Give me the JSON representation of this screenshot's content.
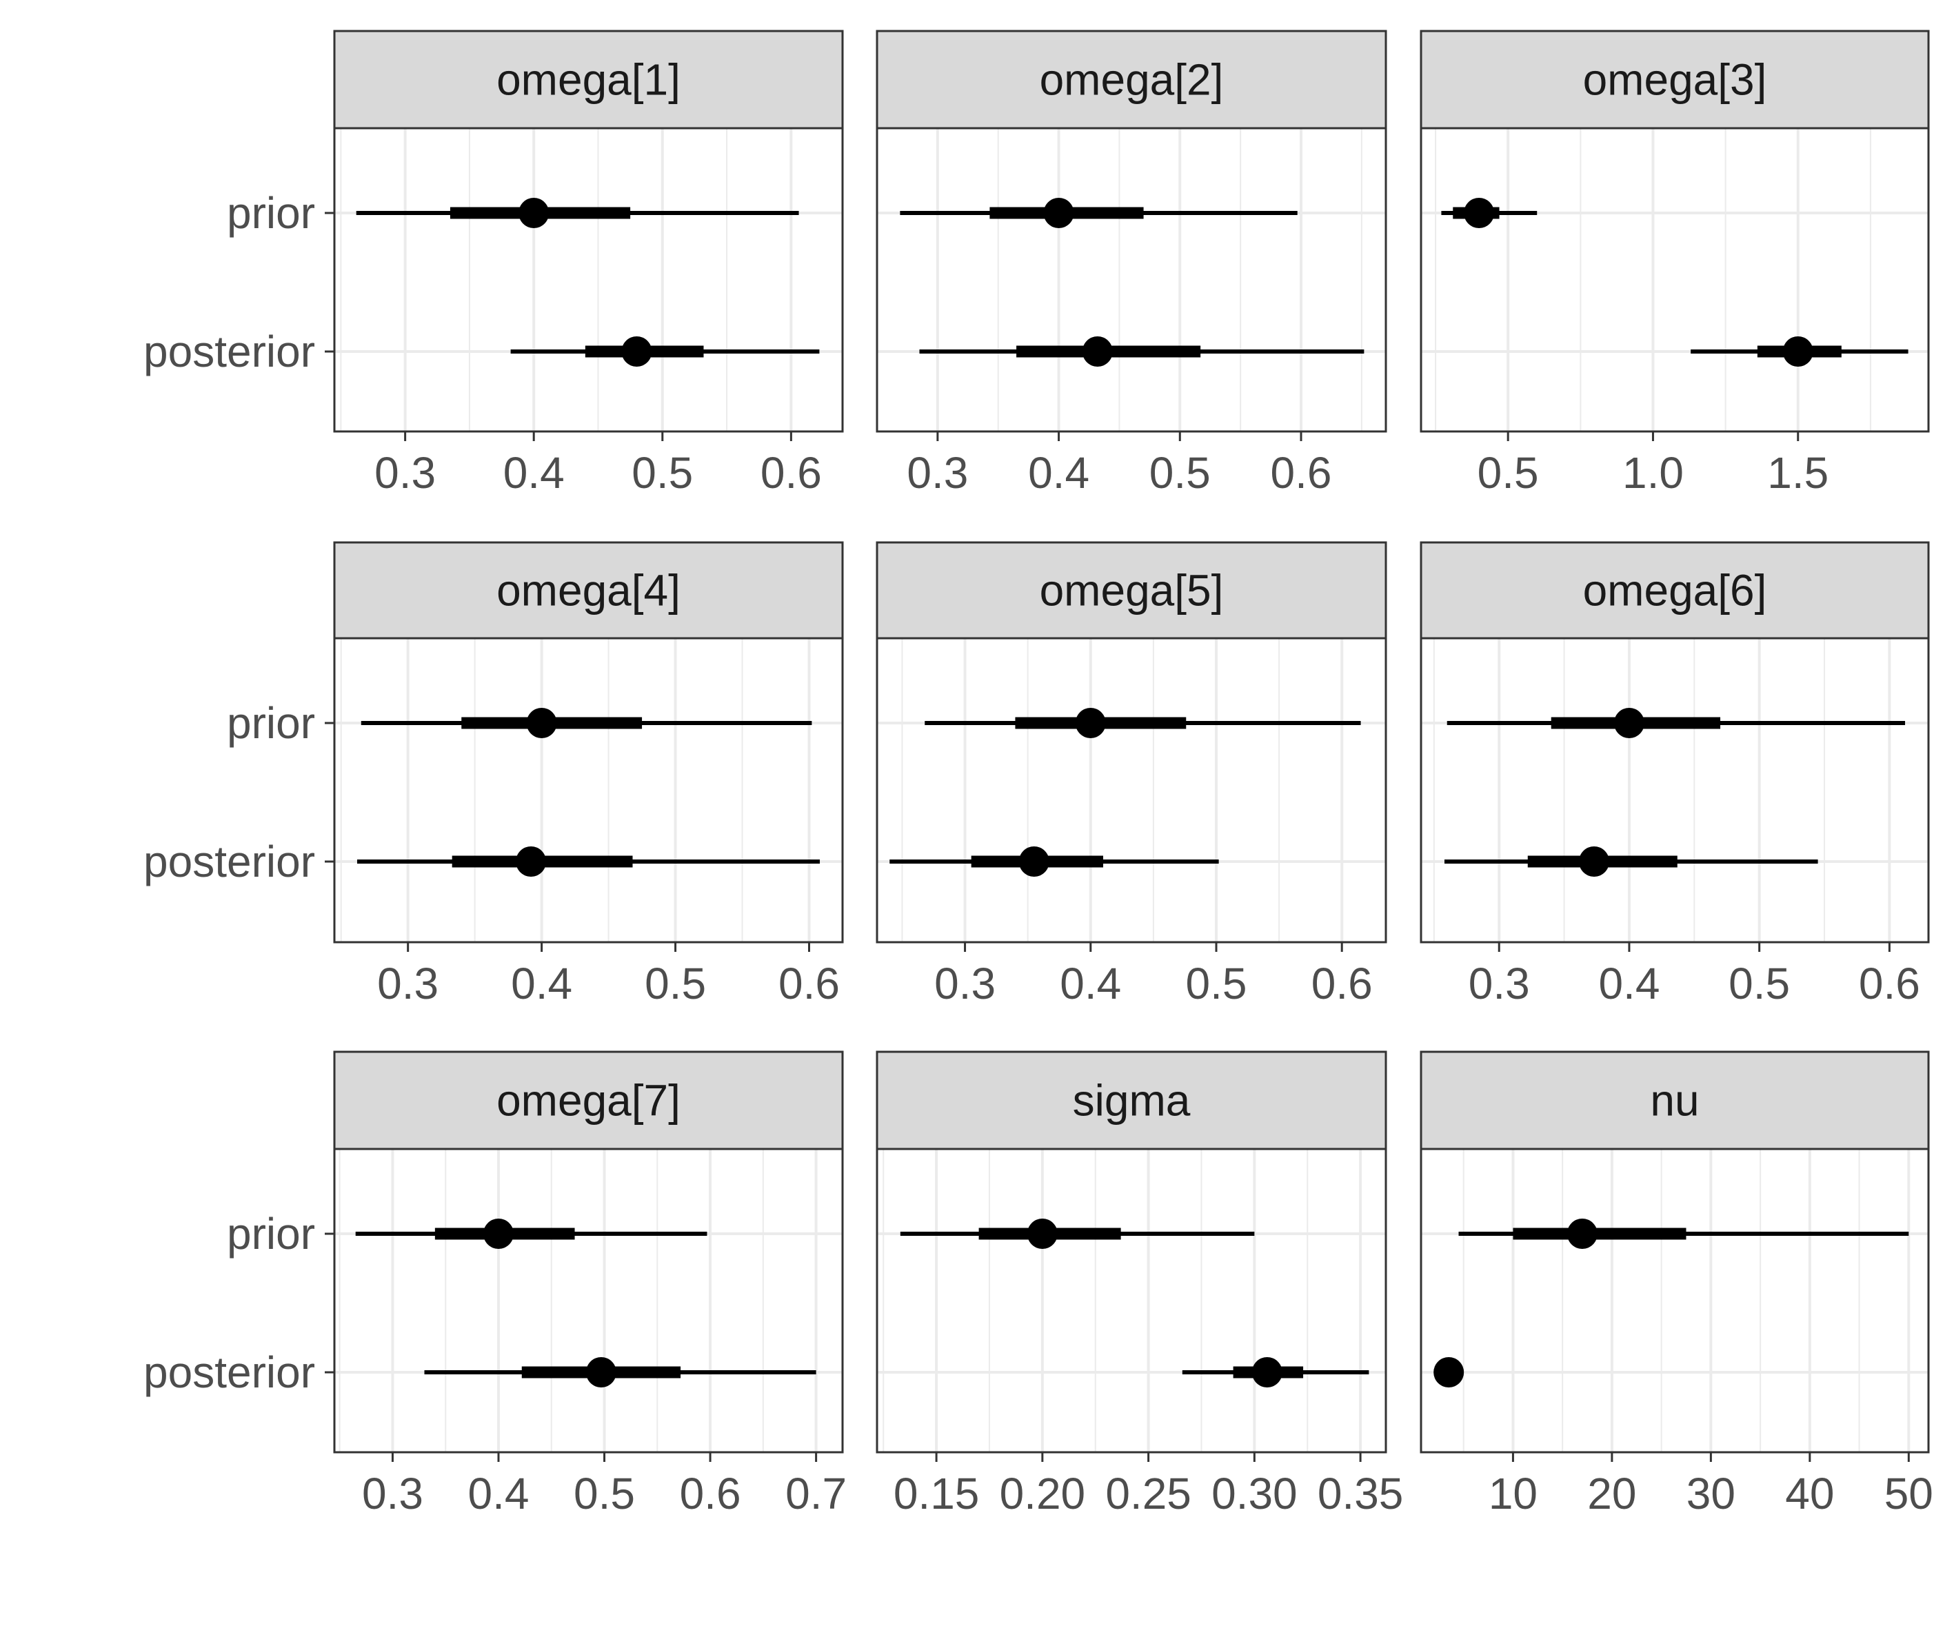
{
  "chart_data": {
    "type": "interval",
    "layout": "facet-grid 3x3",
    "categories": [
      "prior",
      "posterior"
    ],
    "grid": true,
    "panels": [
      {
        "title": "omega[1]",
        "xlim": [
          0.245,
          0.64
        ],
        "ticks": [
          0.3,
          0.4,
          0.5,
          0.6
        ],
        "tick_labels": [
          "0.3",
          "0.4",
          "0.5",
          "0.6"
        ],
        "rows": [
          {
            "label": "prior",
            "point": 0.4,
            "inner": [
              0.335,
              0.475
            ],
            "outer": [
              0.262,
              0.606
            ]
          },
          {
            "label": "posterior",
            "point": 0.48,
            "inner": [
              0.44,
              0.532
            ],
            "outer": [
              0.382,
              0.622
            ]
          }
        ]
      },
      {
        "title": "omega[2]",
        "xlim": [
          0.25,
          0.67
        ],
        "ticks": [
          0.3,
          0.4,
          0.5,
          0.6
        ],
        "tick_labels": [
          "0.3",
          "0.4",
          "0.5",
          "0.6"
        ],
        "rows": [
          {
            "label": "prior",
            "point": 0.4,
            "inner": [
              0.343,
              0.47
            ],
            "outer": [
              0.269,
              0.597
            ]
          },
          {
            "label": "posterior",
            "point": 0.432,
            "inner": [
              0.365,
              0.517
            ],
            "outer": [
              0.285,
              0.652
            ]
          }
        ]
      },
      {
        "title": "omega[3]",
        "xlim": [
          0.2,
          1.95
        ],
        "ticks": [
          0.5,
          1.0,
          1.5
        ],
        "tick_labels": [
          "0.5",
          "1.0",
          "1.5"
        ],
        "rows": [
          {
            "label": "prior",
            "point": 0.4,
            "inner": [
              0.31,
              0.47
            ],
            "outer": [
              0.27,
              0.6
            ]
          },
          {
            "label": "posterior",
            "point": 1.5,
            "inner": [
              1.36,
              1.65
            ],
            "outer": [
              1.13,
              1.88
            ]
          }
        ]
      },
      {
        "title": "omega[4]",
        "xlim": [
          0.245,
          0.625
        ],
        "ticks": [
          0.3,
          0.4,
          0.5,
          0.6
        ],
        "tick_labels": [
          "0.3",
          "0.4",
          "0.5",
          "0.6"
        ],
        "rows": [
          {
            "label": "prior",
            "point": 0.4,
            "inner": [
              0.34,
              0.475
            ],
            "outer": [
              0.265,
              0.602
            ]
          },
          {
            "label": "posterior",
            "point": 0.392,
            "inner": [
              0.333,
              0.468
            ],
            "outer": [
              0.262,
              0.608
            ]
          }
        ]
      },
      {
        "title": "omega[5]",
        "xlim": [
          0.23,
          0.635
        ],
        "ticks": [
          0.3,
          0.4,
          0.5,
          0.6
        ],
        "tick_labels": [
          "0.3",
          "0.4",
          "0.5",
          "0.6"
        ],
        "rows": [
          {
            "label": "prior",
            "point": 0.4,
            "inner": [
              0.34,
              0.476
            ],
            "outer": [
              0.268,
              0.615
            ]
          },
          {
            "label": "posterior",
            "point": 0.355,
            "inner": [
              0.305,
              0.41
            ],
            "outer": [
              0.24,
              0.502
            ]
          }
        ]
      },
      {
        "title": "omega[6]",
        "xlim": [
          0.24,
          0.63
        ],
        "ticks": [
          0.3,
          0.4,
          0.5,
          0.6
        ],
        "tick_labels": [
          "0.3",
          "0.4",
          "0.5",
          "0.6"
        ],
        "rows": [
          {
            "label": "prior",
            "point": 0.4,
            "inner": [
              0.34,
              0.47
            ],
            "outer": [
              0.26,
              0.612
            ]
          },
          {
            "label": "posterior",
            "point": 0.373,
            "inner": [
              0.322,
              0.437
            ],
            "outer": [
              0.258,
              0.545
            ]
          }
        ]
      },
      {
        "title": "omega[7]",
        "xlim": [
          0.245,
          0.725
        ],
        "ticks": [
          0.3,
          0.4,
          0.5,
          0.6,
          0.7
        ],
        "tick_labels": [
          "0.3",
          "0.4",
          "0.5",
          "0.6",
          "0.7"
        ],
        "rows": [
          {
            "label": "prior",
            "point": 0.4,
            "inner": [
              0.34,
              0.472
            ],
            "outer": [
              0.265,
              0.597
            ]
          },
          {
            "label": "posterior",
            "point": 0.497,
            "inner": [
              0.422,
              0.572
            ],
            "outer": [
              0.33,
              0.7
            ]
          }
        ]
      },
      {
        "title": "sigma",
        "xlim": [
          0.122,
          0.362
        ],
        "ticks": [
          0.15,
          0.2,
          0.25,
          0.3,
          0.35
        ],
        "tick_labels": [
          "0.15",
          "0.20",
          "0.25",
          "0.30",
          "0.35"
        ],
        "rows": [
          {
            "label": "prior",
            "point": 0.2,
            "inner": [
              0.17,
              0.237
            ],
            "outer": [
              0.133,
              0.3
            ]
          },
          {
            "label": "posterior",
            "point": 0.306,
            "inner": [
              0.29,
              0.323
            ],
            "outer": [
              0.266,
              0.354
            ]
          }
        ]
      },
      {
        "title": "nu",
        "xlim": [
          0.7,
          52.0
        ],
        "ticks": [
          10,
          20,
          30,
          40,
          50
        ],
        "tick_labels": [
          "10",
          "20",
          "30",
          "40",
          "50"
        ],
        "rows": [
          {
            "label": "prior",
            "point": 17.0,
            "inner": [
              10.0,
              27.5
            ],
            "outer": [
              4.5,
              50.0
            ]
          },
          {
            "label": "posterior",
            "point": 3.5,
            "inner": [
              3.0,
              4.2
            ],
            "outer": [
              2.6,
              5.0
            ]
          }
        ]
      }
    ]
  }
}
